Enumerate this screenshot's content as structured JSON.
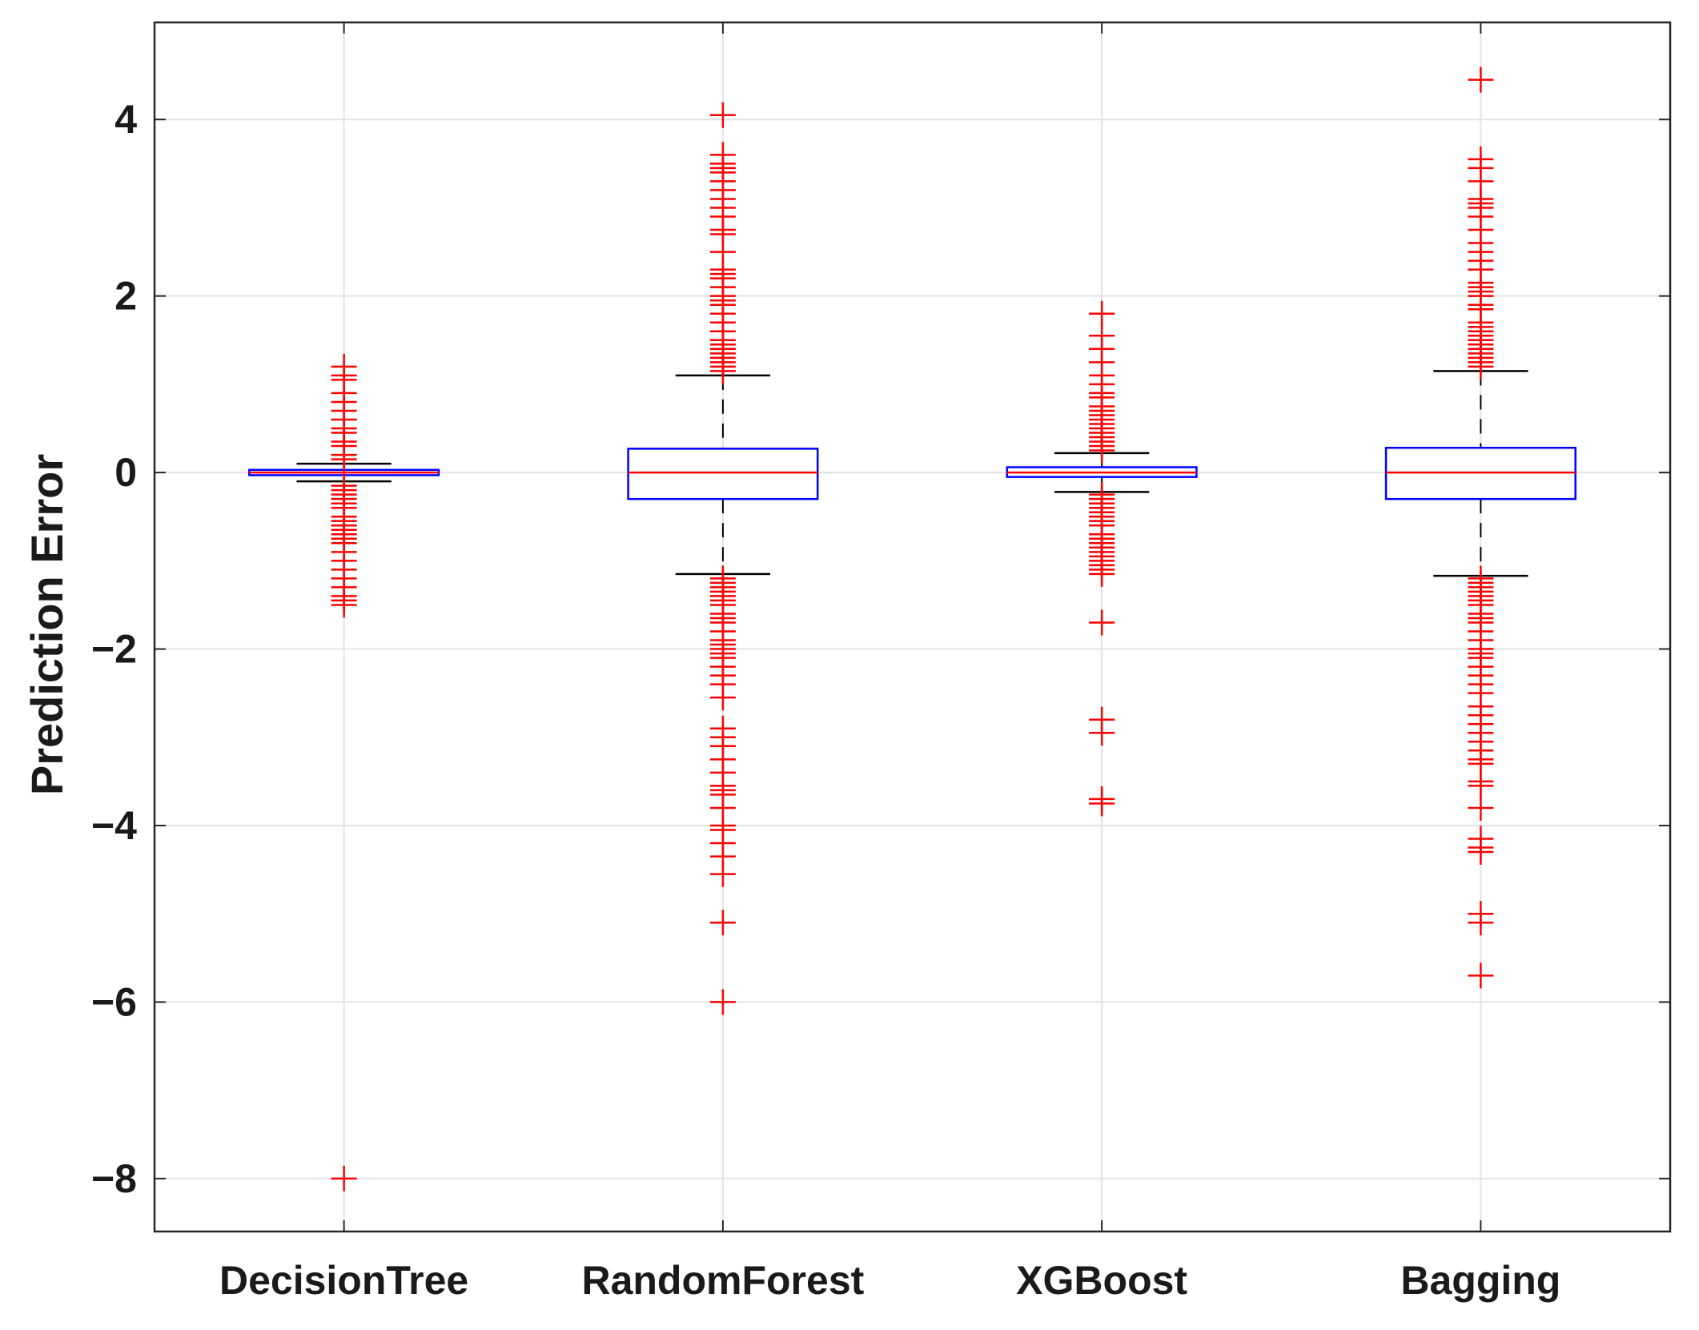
{
  "chart_data": {
    "type": "boxplot",
    "title": "",
    "xlabel": "",
    "ylabel": "Prediction Error",
    "ylim": [
      -8.6,
      5.1
    ],
    "yticks": [
      4,
      2,
      0,
      -2,
      -4,
      -6,
      -8
    ],
    "ytick_labels": [
      "4",
      "2",
      "0",
      "−2",
      "−4",
      "−6",
      "−8"
    ],
    "grid": true,
    "categories": [
      "DecisionTree",
      "RandomForest",
      "XGBoost",
      "Bagging"
    ],
    "colors": {
      "box": "#0000ff",
      "median": "#ff0000",
      "whisker": "#000000",
      "outlier": "#ff0000",
      "grid": "#e3e3e3",
      "axes": "#262626"
    },
    "series": [
      {
        "category": "DecisionTree",
        "q1": -0.03,
        "median": 0.0,
        "q3": 0.03,
        "whisker_low": -0.1,
        "whisker_high": 0.1,
        "outliers": [
          1.2,
          1.1,
          1.05,
          0.9,
          0.8,
          0.7,
          0.6,
          0.5,
          0.45,
          0.35,
          0.3,
          0.2,
          0.15,
          -0.15,
          -0.2,
          -0.25,
          -0.3,
          -0.35,
          -0.4,
          -0.5,
          -0.55,
          -0.6,
          -0.65,
          -0.7,
          -0.75,
          -0.8,
          -0.9,
          -1.0,
          -1.1,
          -1.2,
          -1.3,
          -1.4,
          -1.45,
          -1.5,
          -8.0
        ]
      },
      {
        "category": "RandomForest",
        "q1": -0.3,
        "median": 0.0,
        "q3": 0.27,
        "whisker_low": -1.15,
        "whisker_high": 1.1,
        "outliers": [
          4.05,
          3.6,
          3.5,
          3.45,
          3.4,
          3.3,
          3.2,
          3.1,
          3.0,
          2.9,
          2.75,
          2.7,
          2.5,
          2.3,
          2.25,
          2.2,
          2.1,
          2.0,
          1.95,
          1.9,
          1.8,
          1.7,
          1.6,
          1.5,
          1.45,
          1.4,
          1.35,
          1.3,
          1.25,
          1.2,
          1.15,
          -1.2,
          -1.25,
          -1.3,
          -1.35,
          -1.4,
          -1.45,
          -1.5,
          -1.6,
          -1.65,
          -1.7,
          -1.8,
          -1.9,
          -1.95,
          -2.0,
          -2.05,
          -2.1,
          -2.2,
          -2.3,
          -2.4,
          -2.55,
          -2.9,
          -3.0,
          -3.1,
          -3.25,
          -3.4,
          -3.55,
          -3.6,
          -3.65,
          -3.8,
          -4.0,
          -4.05,
          -4.2,
          -4.35,
          -4.55,
          -5.1,
          -6.0
        ]
      },
      {
        "category": "XGBoost",
        "q1": -0.05,
        "median": 0.0,
        "q3": 0.06,
        "whisker_low": -0.22,
        "whisker_high": 0.22,
        "outliers": [
          1.8,
          1.55,
          1.4,
          1.25,
          1.1,
          1.0,
          0.9,
          0.85,
          0.75,
          0.7,
          0.65,
          0.6,
          0.55,
          0.5,
          0.45,
          0.4,
          0.35,
          0.3,
          0.25,
          -0.25,
          -0.3,
          -0.35,
          -0.4,
          -0.45,
          -0.5,
          -0.55,
          -0.6,
          -0.7,
          -0.75,
          -0.8,
          -0.85,
          -0.9,
          -0.95,
          -1.0,
          -1.05,
          -1.1,
          -1.15,
          -1.7,
          -2.8,
          -2.95,
          -3.7,
          -3.75
        ]
      },
      {
        "category": "Bagging",
        "q1": -0.3,
        "median": 0.0,
        "q3": 0.28,
        "whisker_low": -1.17,
        "whisker_high": 1.15,
        "outliers": [
          4.45,
          3.55,
          3.45,
          3.3,
          3.1,
          3.05,
          3.0,
          2.9,
          2.75,
          2.6,
          2.5,
          2.4,
          2.3,
          2.15,
          2.1,
          2.05,
          2.0,
          1.9,
          1.85,
          1.7,
          1.65,
          1.6,
          1.55,
          1.5,
          1.45,
          1.4,
          1.35,
          1.3,
          1.25,
          1.2,
          -1.2,
          -1.25,
          -1.3,
          -1.35,
          -1.4,
          -1.45,
          -1.5,
          -1.6,
          -1.65,
          -1.7,
          -1.8,
          -1.9,
          -2.0,
          -2.05,
          -2.1,
          -2.2,
          -2.3,
          -2.4,
          -2.5,
          -2.65,
          -2.75,
          -2.85,
          -2.95,
          -3.05,
          -3.15,
          -3.25,
          -3.3,
          -3.5,
          -3.55,
          -3.8,
          -4.15,
          -4.25,
          -4.3,
          -5.0,
          -5.1,
          -5.7
        ]
      }
    ]
  }
}
